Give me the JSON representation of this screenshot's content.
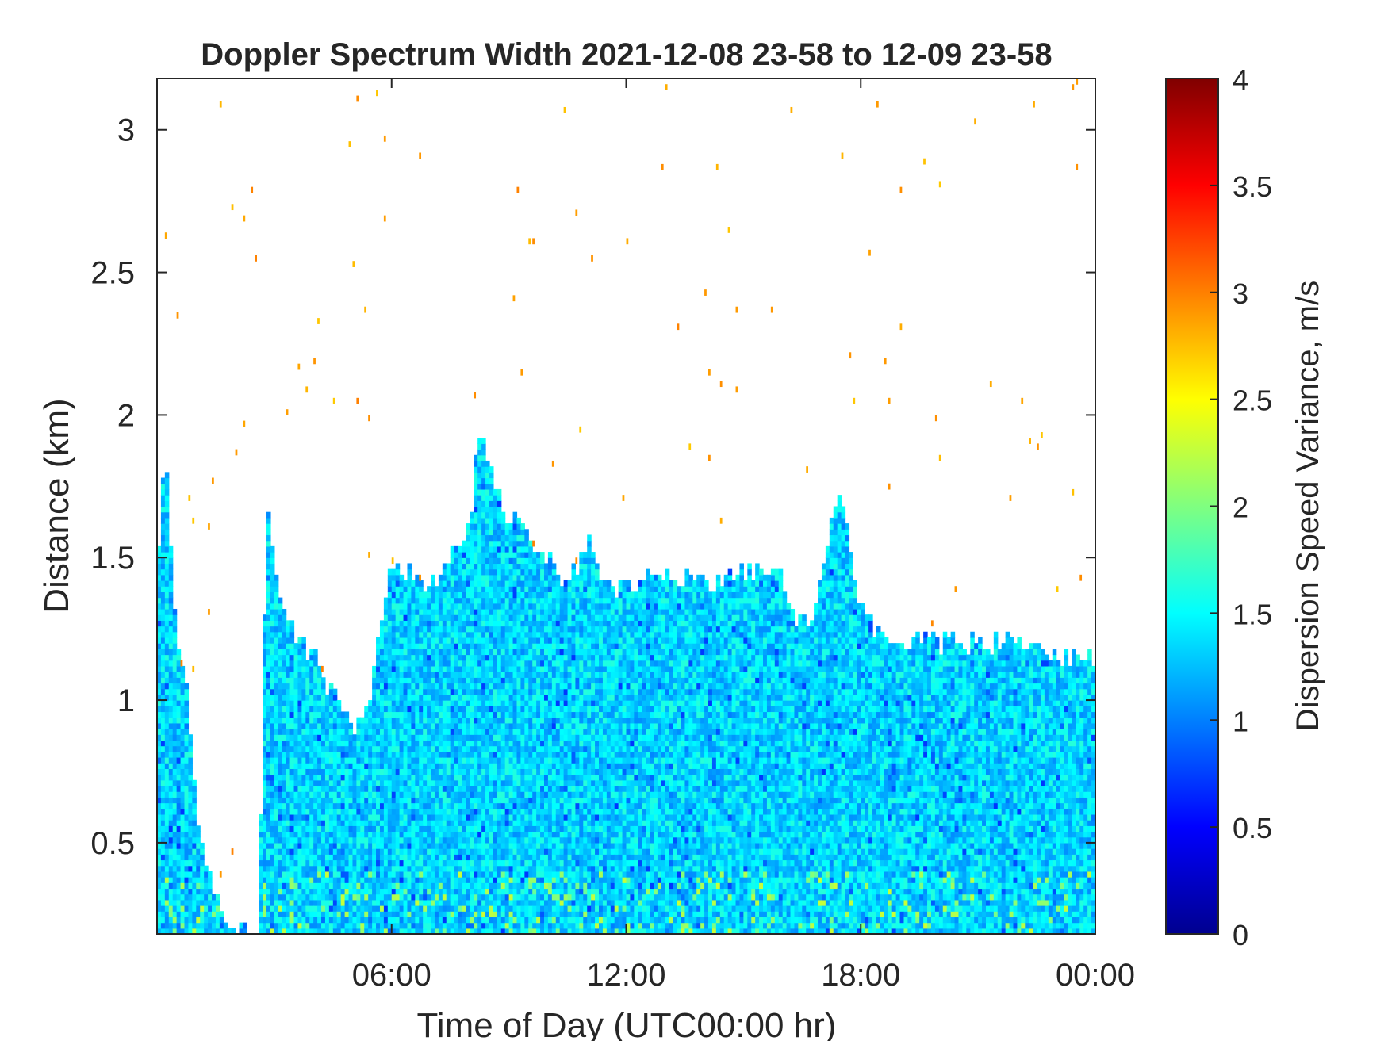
{
  "chart_data": {
    "type": "heatmap",
    "title": "Doppler Spectrum Width 2021-12-08 23-58 to 12-09 23-58",
    "xlabel": "Time of Day (UTC00:00 hr)",
    "ylabel": "Distance (km)",
    "colorbar_label": "Dispersion Speed Variance, m/s",
    "colormap": "jet",
    "xlim": [
      0,
      24
    ],
    "ylim": [
      0.18,
      3.18
    ],
    "clim": [
      0,
      4
    ],
    "x_ticks": [
      {
        "value": 6,
        "label": "06:00"
      },
      {
        "value": 12,
        "label": "12:00"
      },
      {
        "value": 18,
        "label": "18:00"
      },
      {
        "value": 24,
        "label": "00:00"
      }
    ],
    "y_ticks": [
      {
        "value": 0.5,
        "label": "0.5"
      },
      {
        "value": 1.0,
        "label": "1"
      },
      {
        "value": 1.5,
        "label": "1.5"
      },
      {
        "value": 2.0,
        "label": "2"
      },
      {
        "value": 2.5,
        "label": "2.5"
      },
      {
        "value": 3.0,
        "label": "3"
      }
    ],
    "colorbar_ticks": [
      {
        "value": 0,
        "label": "0"
      },
      {
        "value": 0.5,
        "label": "0.5"
      },
      {
        "value": 1,
        "label": "1"
      },
      {
        "value": 1.5,
        "label": "1.5"
      },
      {
        "value": 2,
        "label": "2"
      },
      {
        "value": 2.5,
        "label": "2.5"
      },
      {
        "value": 3,
        "label": "3"
      },
      {
        "value": 3.5,
        "label": "3.5"
      },
      {
        "value": 4,
        "label": "4"
      }
    ],
    "echo_top_profile": [
      {
        "t": 0.0,
        "h": 1.4
      },
      {
        "t": 0.2,
        "h": 1.9
      },
      {
        "t": 0.5,
        "h": 1.2
      },
      {
        "t": 0.8,
        "h": 1.0
      },
      {
        "t": 1.0,
        "h": 0.6
      },
      {
        "t": 1.5,
        "h": 0.3
      },
      {
        "t": 2.0,
        "h": 0.2
      },
      {
        "t": 2.6,
        "h": 0.2
      },
      {
        "t": 2.8,
        "h": 1.7
      },
      {
        "t": 3.2,
        "h": 1.3
      },
      {
        "t": 4.0,
        "h": 1.15
      },
      {
        "t": 5.0,
        "h": 0.9
      },
      {
        "t": 5.5,
        "h": 1.05
      },
      {
        "t": 6.0,
        "h": 1.5
      },
      {
        "t": 7.0,
        "h": 1.4
      },
      {
        "t": 8.0,
        "h": 1.6
      },
      {
        "t": 8.2,
        "h": 1.95
      },
      {
        "t": 9.0,
        "h": 1.65
      },
      {
        "t": 10.0,
        "h": 1.5
      },
      {
        "t": 10.5,
        "h": 1.4
      },
      {
        "t": 11.0,
        "h": 1.55
      },
      {
        "t": 11.5,
        "h": 1.4
      },
      {
        "t": 12.0,
        "h": 1.4
      },
      {
        "t": 13.0,
        "h": 1.45
      },
      {
        "t": 14.0,
        "h": 1.4
      },
      {
        "t": 15.0,
        "h": 1.45
      },
      {
        "t": 16.0,
        "h": 1.45
      },
      {
        "t": 16.3,
        "h": 1.25
      },
      {
        "t": 16.8,
        "h": 1.3
      },
      {
        "t": 17.0,
        "h": 1.5
      },
      {
        "t": 17.5,
        "h": 1.75
      },
      {
        "t": 18.0,
        "h": 1.3
      },
      {
        "t": 19.0,
        "h": 1.2
      },
      {
        "t": 20.0,
        "h": 1.2
      },
      {
        "t": 21.0,
        "h": 1.2
      },
      {
        "t": 22.0,
        "h": 1.2
      },
      {
        "t": 23.0,
        "h": 1.15
      },
      {
        "t": 24.0,
        "h": 1.15
      }
    ],
    "typical_value_in_echo": 1.35
  }
}
